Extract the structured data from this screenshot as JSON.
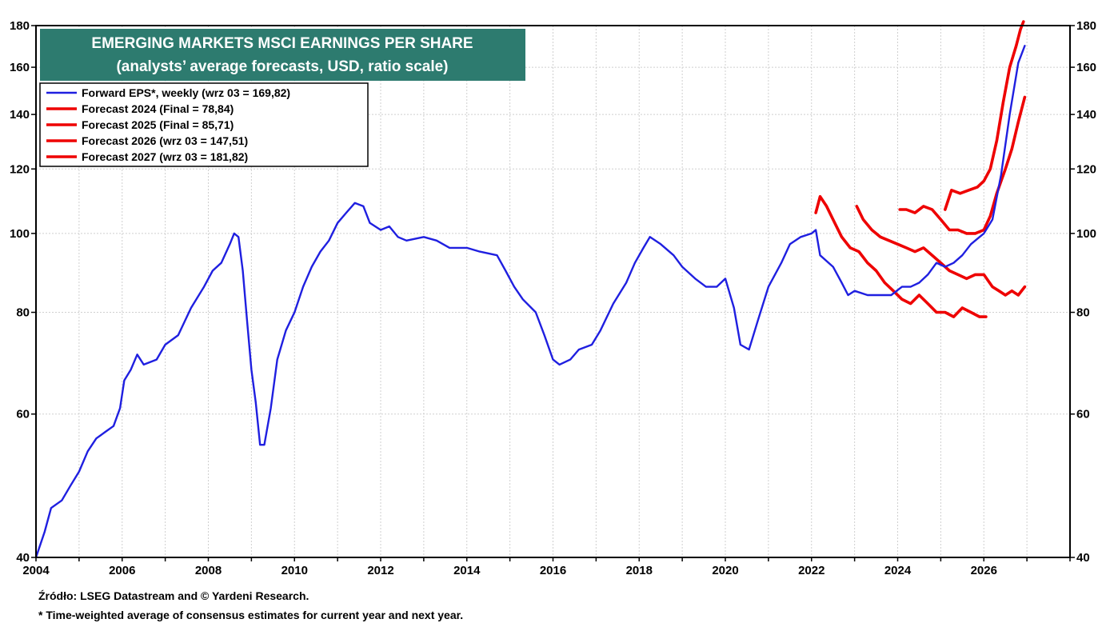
{
  "colors": {
    "forward_eps": "#1f1fe0",
    "forecast": "#ee0000",
    "title_bg": "#2d7b6f",
    "grid": "#cfcfcf"
  },
  "footnotes": {
    "source": "Źródło: LSEG Datastream and © Yardeni Research.",
    "note": "* Time-weighted average of consensus estimates for current year and next year."
  },
  "chart_data": {
    "type": "line",
    "title": "EMERGING MARKETS MSCI EARNINGS PER SHARE",
    "subtitle": "(analysts’ average forecasts, USD, ratio scale)",
    "y_scale": "log",
    "ylim": [
      40,
      180
    ],
    "xlim": [
      2004.0,
      2028.0
    ],
    "y_ticks": [
      40,
      60,
      80,
      100,
      120,
      140,
      160,
      180
    ],
    "y_tick_labels": [
      "40",
      "60",
      "80",
      "100",
      "120",
      "140",
      "160",
      "180"
    ],
    "x_ticks": [
      2004,
      2006,
      2008,
      2010,
      2012,
      2014,
      2016,
      2018,
      2020,
      2022,
      2024,
      2026
    ],
    "x_tick_labels": [
      "2004",
      "2006",
      "2008",
      "2010",
      "2012",
      "2014",
      "2016",
      "2018",
      "2020",
      "2022",
      "2024",
      "2026"
    ],
    "legend_position": "top-left",
    "grid": true,
    "series": [
      {
        "name": "Forward EPS*, weekly (wrz 03 = 169,82)",
        "color": "#1f1fe0",
        "points": [
          [
            2004.0,
            40
          ],
          [
            2004.2,
            43
          ],
          [
            2004.35,
            46
          ],
          [
            2004.6,
            47
          ],
          [
            2004.8,
            49
          ],
          [
            2005.0,
            51
          ],
          [
            2005.2,
            54
          ],
          [
            2005.4,
            56
          ],
          [
            2005.6,
            57
          ],
          [
            2005.8,
            58
          ],
          [
            2005.95,
            61
          ],
          [
            2006.05,
            66
          ],
          [
            2006.2,
            68
          ],
          [
            2006.35,
            71
          ],
          [
            2006.5,
            69
          ],
          [
            2006.8,
            70
          ],
          [
            2007.0,
            73
          ],
          [
            2007.3,
            75
          ],
          [
            2007.6,
            81
          ],
          [
            2007.9,
            86
          ],
          [
            2008.1,
            90
          ],
          [
            2008.3,
            92
          ],
          [
            2008.5,
            97
          ],
          [
            2008.6,
            100
          ],
          [
            2008.7,
            99
          ],
          [
            2008.8,
            90
          ],
          [
            2008.9,
            78
          ],
          [
            2009.0,
            68
          ],
          [
            2009.1,
            62
          ],
          [
            2009.2,
            55
          ],
          [
            2009.3,
            55
          ],
          [
            2009.45,
            61
          ],
          [
            2009.6,
            70
          ],
          [
            2009.8,
            76
          ],
          [
            2010.0,
            80
          ],
          [
            2010.2,
            86
          ],
          [
            2010.4,
            91
          ],
          [
            2010.6,
            95
          ],
          [
            2010.8,
            98
          ],
          [
            2011.0,
            103
          ],
          [
            2011.2,
            106
          ],
          [
            2011.4,
            109
          ],
          [
            2011.6,
            108
          ],
          [
            2011.75,
            103
          ],
          [
            2012.0,
            101
          ],
          [
            2012.2,
            102
          ],
          [
            2012.4,
            99
          ],
          [
            2012.6,
            98
          ],
          [
            2013.0,
            99
          ],
          [
            2013.3,
            98
          ],
          [
            2013.6,
            96
          ],
          [
            2014.0,
            96
          ],
          [
            2014.3,
            95
          ],
          [
            2014.7,
            94
          ],
          [
            2014.9,
            90
          ],
          [
            2015.1,
            86
          ],
          [
            2015.3,
            83
          ],
          [
            2015.6,
            80
          ],
          [
            2015.8,
            75
          ],
          [
            2016.0,
            70
          ],
          [
            2016.15,
            69
          ],
          [
            2016.4,
            70
          ],
          [
            2016.6,
            72
          ],
          [
            2016.9,
            73
          ],
          [
            2017.1,
            76
          ],
          [
            2017.4,
            82
          ],
          [
            2017.7,
            87
          ],
          [
            2017.9,
            92
          ],
          [
            2018.1,
            96
          ],
          [
            2018.25,
            99
          ],
          [
            2018.5,
            97
          ],
          [
            2018.8,
            94
          ],
          [
            2019.0,
            91
          ],
          [
            2019.3,
            88
          ],
          [
            2019.55,
            86
          ],
          [
            2019.8,
            86
          ],
          [
            2020.0,
            88
          ],
          [
            2020.2,
            81
          ],
          [
            2020.35,
            73
          ],
          [
            2020.55,
            72
          ],
          [
            2020.75,
            78
          ],
          [
            2021.0,
            86
          ],
          [
            2021.3,
            92
          ],
          [
            2021.5,
            97
          ],
          [
            2021.75,
            99
          ],
          [
            2022.0,
            100
          ],
          [
            2022.1,
            101
          ],
          [
            2022.2,
            94
          ],
          [
            2022.5,
            91
          ],
          [
            2022.7,
            87
          ],
          [
            2022.85,
            84
          ],
          [
            2023.0,
            85
          ],
          [
            2023.3,
            84
          ],
          [
            2023.6,
            84
          ],
          [
            2023.85,
            84
          ],
          [
            2024.1,
            86
          ],
          [
            2024.3,
            86
          ],
          [
            2024.5,
            87
          ],
          [
            2024.7,
            89
          ],
          [
            2024.9,
            92
          ],
          [
            2025.1,
            91
          ],
          [
            2025.3,
            92
          ],
          [
            2025.5,
            94
          ],
          [
            2025.7,
            97
          ],
          [
            2025.9,
            99
          ],
          [
            2026.0,
            100
          ],
          [
            2026.2,
            104
          ],
          [
            2026.4,
            118
          ],
          [
            2026.6,
            140
          ],
          [
            2026.8,
            162
          ],
          [
            2026.95,
            170
          ]
        ]
      },
      {
        "name": "Forecast 2024 (Final = 78,84)",
        "color": "#ee0000",
        "points": [
          [
            2022.1,
            106
          ],
          [
            2022.2,
            111
          ],
          [
            2022.35,
            108
          ],
          [
            2022.5,
            104
          ],
          [
            2022.7,
            99
          ],
          [
            2022.9,
            96
          ],
          [
            2023.1,
            95
          ],
          [
            2023.3,
            92
          ],
          [
            2023.5,
            90
          ],
          [
            2023.7,
            87
          ],
          [
            2023.9,
            85
          ],
          [
            2024.1,
            83
          ],
          [
            2024.3,
            82
          ],
          [
            2024.5,
            84
          ],
          [
            2024.7,
            82
          ],
          [
            2024.9,
            80
          ],
          [
            2025.1,
            80
          ],
          [
            2025.3,
            79
          ],
          [
            2025.5,
            81
          ],
          [
            2025.7,
            80
          ],
          [
            2025.9,
            79
          ],
          [
            2026.05,
            79
          ]
        ]
      },
      {
        "name": "Forecast 2025 (Final = 85,71)",
        "color": "#ee0000",
        "points": [
          [
            2023.05,
            108
          ],
          [
            2023.2,
            104
          ],
          [
            2023.4,
            101
          ],
          [
            2023.6,
            99
          ],
          [
            2023.8,
            98
          ],
          [
            2024.0,
            97
          ],
          [
            2024.2,
            96
          ],
          [
            2024.4,
            95
          ],
          [
            2024.6,
            96
          ],
          [
            2024.8,
            94
          ],
          [
            2025.0,
            92
          ],
          [
            2025.2,
            90
          ],
          [
            2025.4,
            89
          ],
          [
            2025.6,
            88
          ],
          [
            2025.8,
            89
          ],
          [
            2026.0,
            89
          ],
          [
            2026.2,
            86
          ],
          [
            2026.35,
            85
          ],
          [
            2026.5,
            84
          ],
          [
            2026.65,
            85
          ],
          [
            2026.8,
            84
          ],
          [
            2026.95,
            86
          ]
        ]
      },
      {
        "name": "Forecast 2026 (wrz 03 = 147,51)",
        "color": "#ee0000",
        "points": [
          [
            2024.05,
            107
          ],
          [
            2024.2,
            107
          ],
          [
            2024.4,
            106
          ],
          [
            2024.6,
            108
          ],
          [
            2024.8,
            107
          ],
          [
            2025.0,
            104
          ],
          [
            2025.2,
            101
          ],
          [
            2025.4,
            101
          ],
          [
            2025.6,
            100
          ],
          [
            2025.8,
            100
          ],
          [
            2026.0,
            101
          ],
          [
            2026.15,
            105
          ],
          [
            2026.3,
            112
          ],
          [
            2026.5,
            120
          ],
          [
            2026.65,
            127
          ],
          [
            2026.8,
            137
          ],
          [
            2026.95,
            147
          ]
        ]
      },
      {
        "name": "Forecast 2027 (wrz 03 = 181,82)",
        "color": "#ee0000",
        "points": [
          [
            2025.1,
            107
          ],
          [
            2025.25,
            113
          ],
          [
            2025.45,
            112
          ],
          [
            2025.65,
            113
          ],
          [
            2025.85,
            114
          ],
          [
            2026.0,
            116
          ],
          [
            2026.15,
            120
          ],
          [
            2026.3,
            130
          ],
          [
            2026.45,
            145
          ],
          [
            2026.6,
            160
          ],
          [
            2026.75,
            170
          ],
          [
            2026.85,
            178
          ],
          [
            2026.92,
            182
          ]
        ]
      }
    ]
  }
}
